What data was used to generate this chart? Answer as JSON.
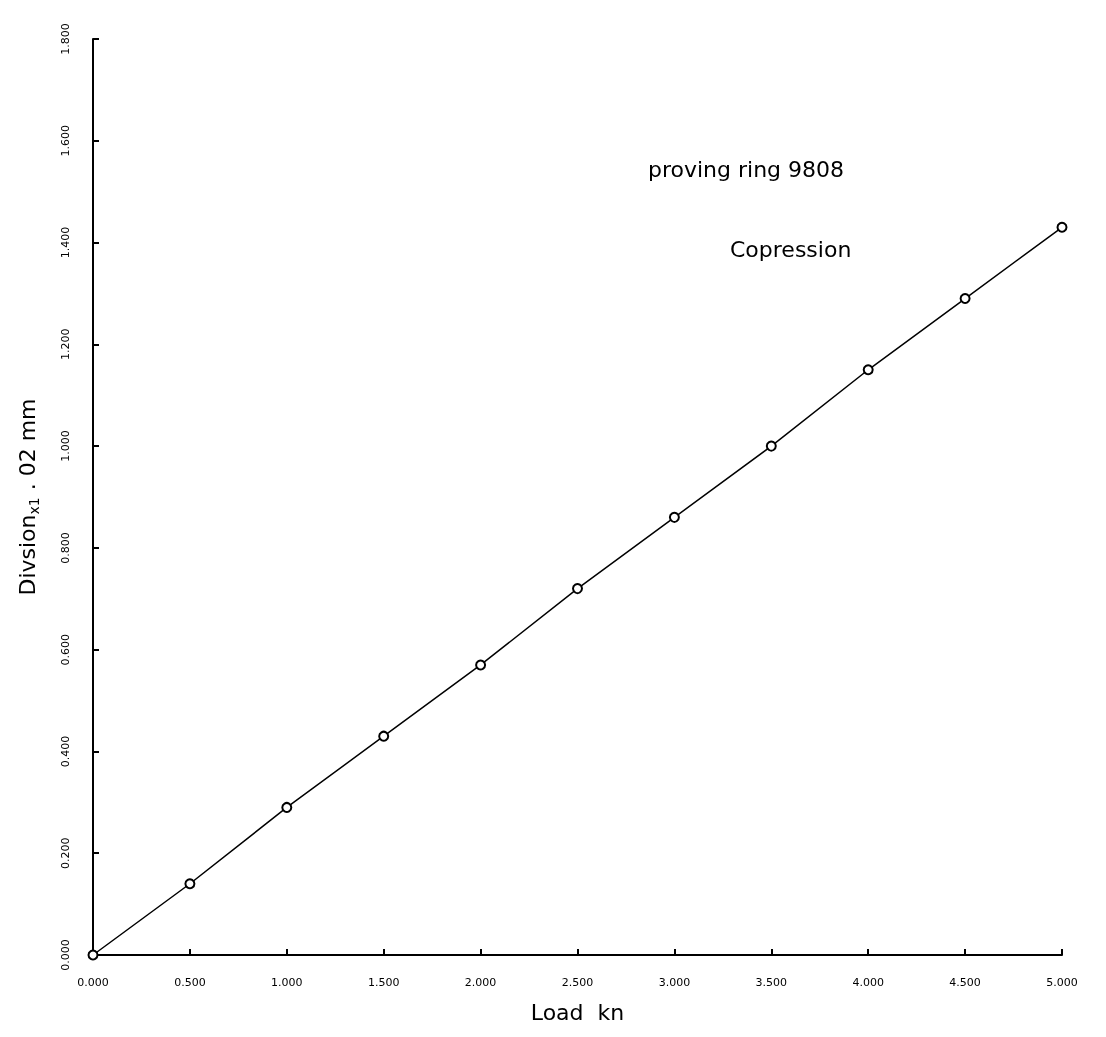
{
  "chart_data": {
    "type": "line",
    "xlabel": "Load  kn",
    "ylabel": "Divsion$_{x1}$ . 02 mm",
    "annotations": [
      "proving ring 9808",
      "Copression"
    ],
    "x": [
      0,
      0.5,
      1.0,
      1.5,
      2.0,
      2.5,
      3.0,
      3.5,
      4.0,
      4.5,
      5.0
    ],
    "series": [
      {
        "color": "#000000",
        "values": [
          0,
          0.14,
          0.29,
          0.43,
          0.57,
          0.72,
          0.86,
          1.0,
          1.15,
          1.29,
          1.43
        ]
      }
    ],
    "xlim": [
      0,
      5
    ],
    "xticks": [
      {
        "value": 0,
        "label": "0.000"
      },
      {
        "value": 0.5,
        "label": "0.500"
      },
      {
        "value": 1,
        "label": "1.000"
      },
      {
        "value": 1.5,
        "label": "1.500"
      },
      {
        "value": 2,
        "label": "2.000"
      },
      {
        "value": 2.5,
        "label": "2.500"
      },
      {
        "value": 3,
        "label": "3.000"
      },
      {
        "value": 3.5,
        "label": "3.500"
      },
      {
        "value": 4,
        "label": "4.000"
      },
      {
        "value": 4.5,
        "label": "4.500"
      },
      {
        "value": 5,
        "label": "5.000"
      }
    ],
    "ylim": [
      0,
      1.8
    ],
    "yticks": [
      {
        "value": 0,
        "label": "0.000"
      },
      {
        "value": 0.2,
        "label": "0.200"
      },
      {
        "value": 0.4,
        "label": "0.400"
      },
      {
        "value": 0.6,
        "label": "0.600"
      },
      {
        "value": 0.8,
        "label": "0.800"
      },
      {
        "value": 1,
        "label": "1.000"
      },
      {
        "value": 1.2,
        "label": "1.200"
      },
      {
        "value": 1.4,
        "label": "1.400"
      },
      {
        "value": 1.6,
        "label": "1.600"
      },
      {
        "value": 1.8,
        "label": "1.800"
      }
    ],
    "grid": false,
    "marker": "circle",
    "line_style": "solid"
  }
}
